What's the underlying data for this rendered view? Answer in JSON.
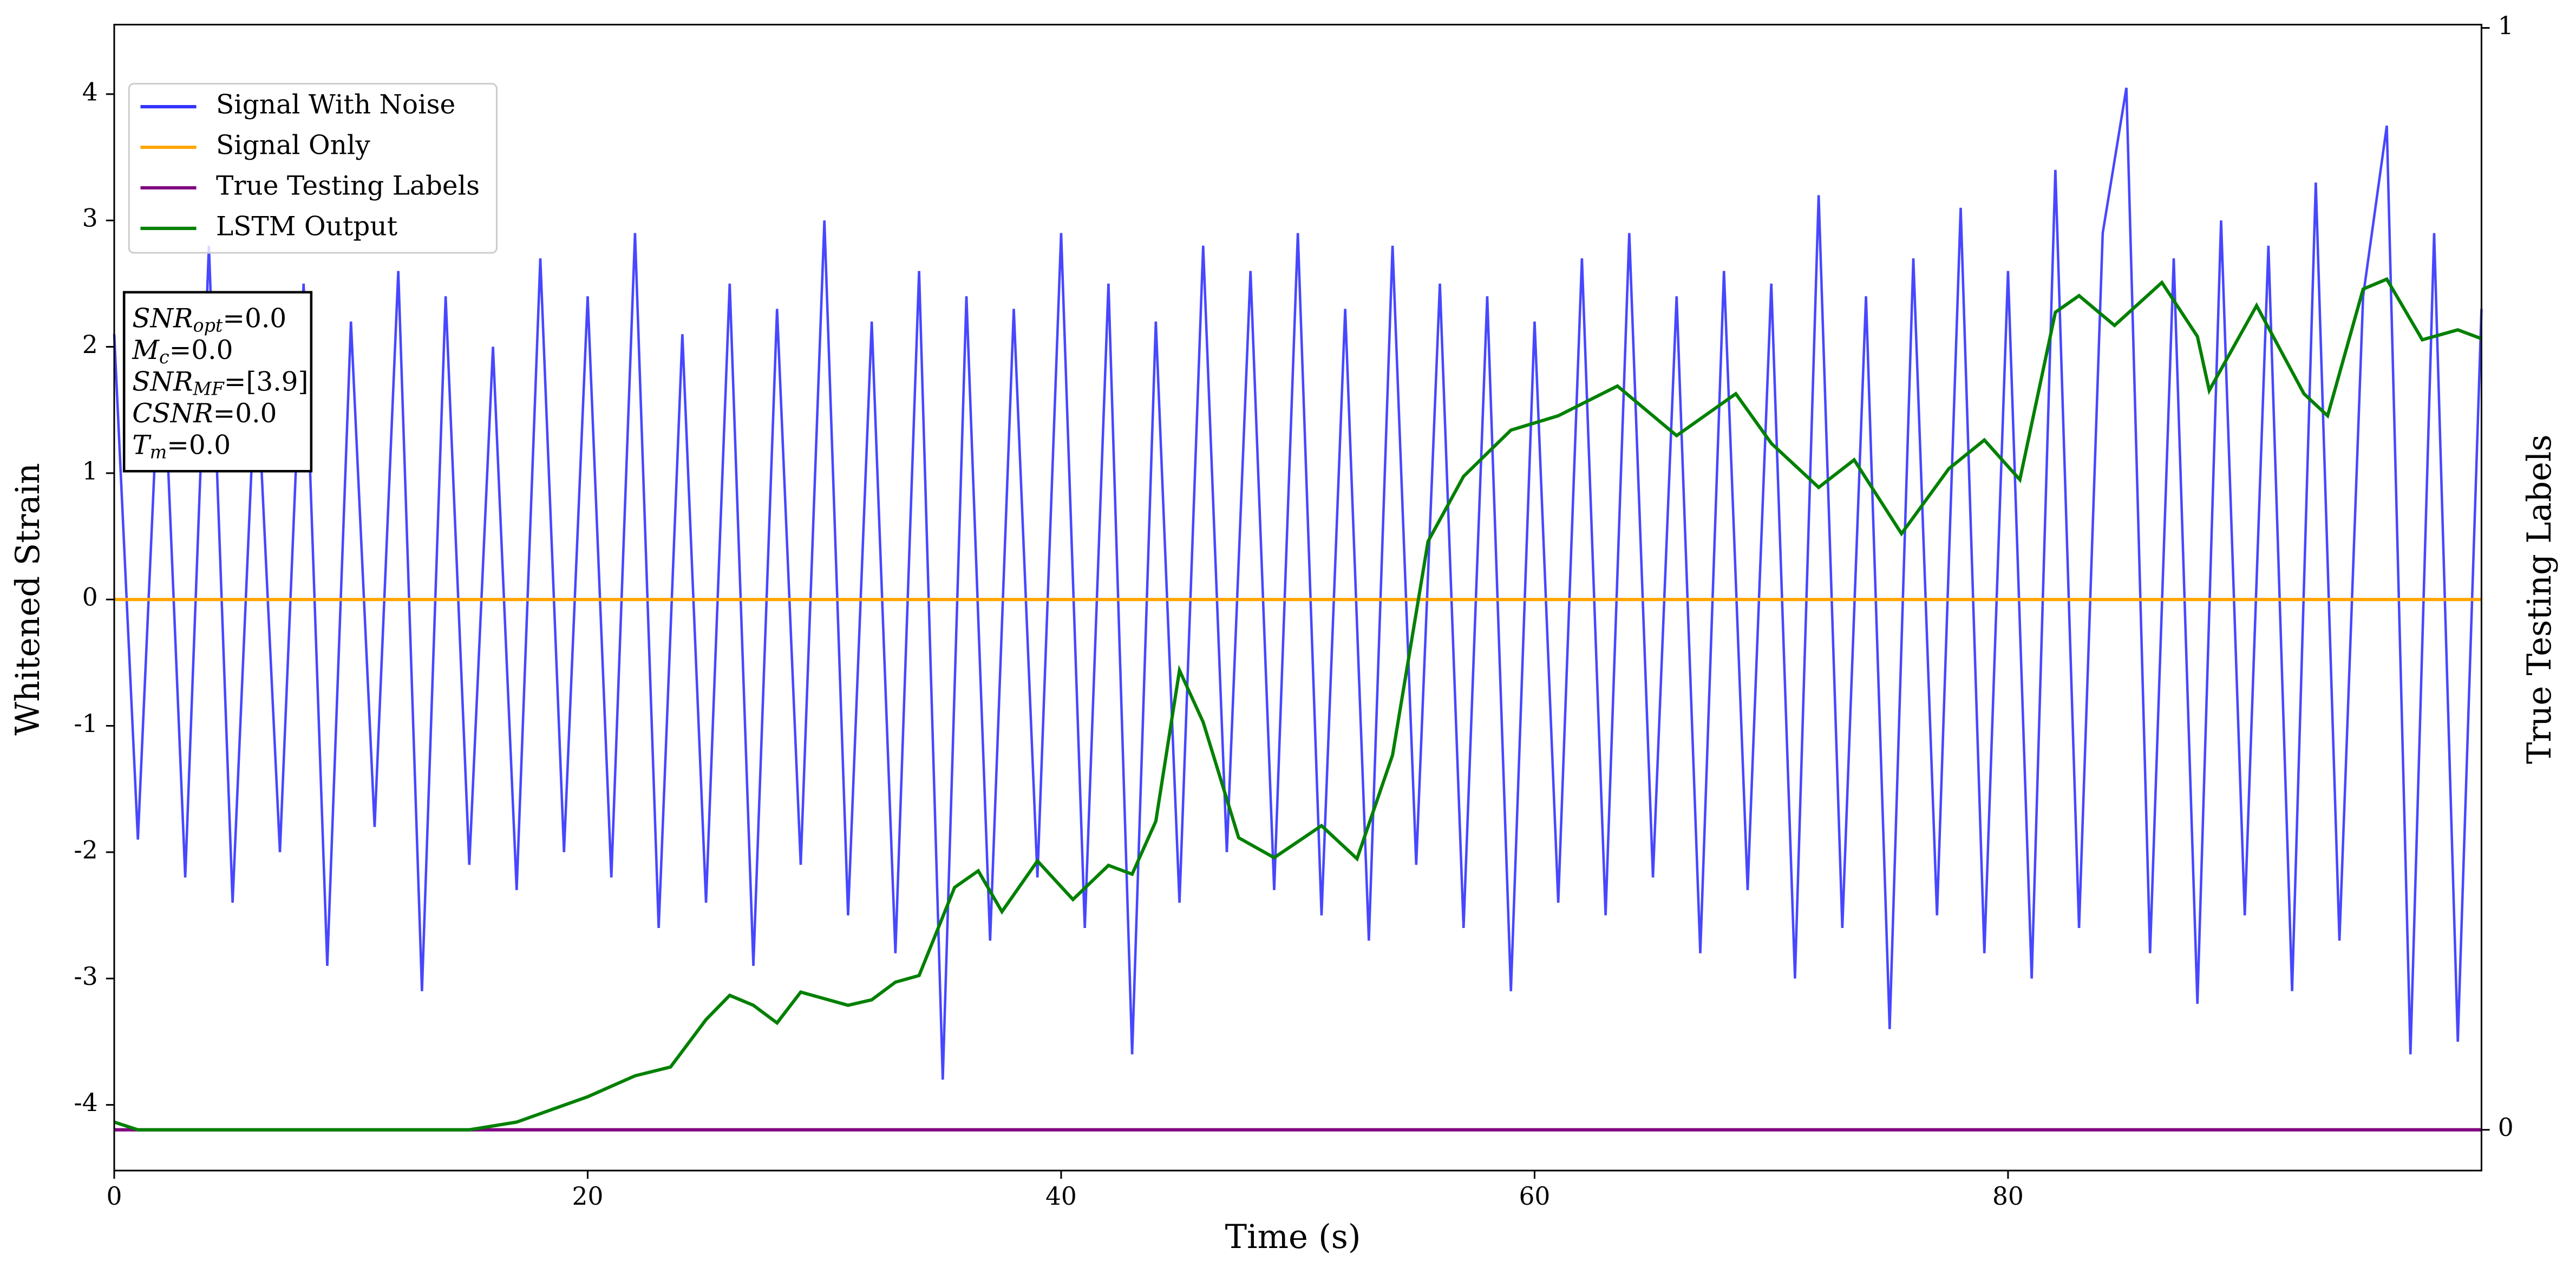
{
  "chart_data": {
    "type": "line",
    "xlabel": "Time (s)",
    "ylabel": "Whitened Strain",
    "y2label": "True Testing Labels",
    "xlim": [
      0,
      100
    ],
    "xticks": [
      0,
      20,
      40,
      60,
      80
    ],
    "ylim": [
      -4.52,
      4.55
    ],
    "yticks": [
      -4,
      -3,
      -2,
      -1,
      0,
      1,
      2,
      3,
      4
    ],
    "y2lim": [
      -0.037,
      1.003
    ],
    "y2ticks": [
      0,
      1
    ],
    "legend": "upper left",
    "annotation": [
      {
        "base": "SNR",
        "sub": "opt",
        "text": "=0.0"
      },
      {
        "base": "M",
        "sub": "c",
        "text": "=0.0"
      },
      {
        "base": "SNR",
        "sub": "MF",
        "text": "=[3.9]"
      },
      {
        "base": "CSNR",
        "text": "=0.0"
      },
      {
        "base": "T",
        "sub": "m",
        "text": "=0.0"
      }
    ],
    "series": [
      {
        "name": "Signal With Noise",
        "color": "#3333ff",
        "axis": "y",
        "x": [
          0,
          1,
          2,
          3,
          4,
          5,
          6,
          7,
          8,
          9,
          10,
          11,
          12,
          13,
          14,
          15,
          16,
          17,
          18,
          19,
          20,
          21,
          22,
          23,
          24,
          25,
          26,
          27,
          28,
          29,
          30,
          31,
          32,
          33,
          34,
          35,
          36,
          37,
          38,
          39,
          40,
          41,
          42,
          43,
          44,
          45,
          46,
          47,
          48,
          49,
          50,
          51,
          52,
          53,
          54,
          55,
          56,
          57,
          58,
          59,
          60,
          61,
          62,
          63,
          64,
          65,
          66,
          67,
          68,
          69,
          70,
          71,
          72,
          73,
          74,
          75,
          76,
          77,
          78,
          79,
          80,
          81,
          82,
          83,
          84,
          85,
          86,
          87,
          88,
          89,
          90,
          91,
          92,
          93,
          94,
          95,
          96,
          97,
          98,
          99,
          100
        ],
        "values": [
          2.1,
          -1.9,
          2.3,
          -2.2,
          2.8,
          -2.4,
          1.9,
          -2.0,
          2.5,
          -2.9,
          2.2,
          -1.8,
          2.6,
          -3.1,
          2.4,
          -2.1,
          2.0,
          -2.3,
          2.7,
          -2.0,
          2.4,
          -2.2,
          2.9,
          -2.6,
          2.1,
          -2.4,
          2.5,
          -2.9,
          2.3,
          -2.1,
          3.0,
          -2.5,
          2.2,
          -2.8,
          2.6,
          -3.8,
          2.4,
          -2.7,
          2.3,
          -2.2,
          2.9,
          -2.6,
          2.5,
          -3.6,
          2.2,
          -2.4,
          2.8,
          -2.0,
          2.6,
          -2.3,
          2.9,
          -2.5,
          2.3,
          -2.7,
          2.8,
          -2.1,
          2.5,
          -2.6,
          2.4,
          -3.1,
          2.2,
          -2.4,
          2.7,
          -2.5,
          2.9,
          -2.2,
          2.4,
          -2.8,
          2.6,
          -2.3,
          2.5,
          -3.0,
          3.2,
          -2.6,
          2.4,
          -3.4,
          2.7,
          -2.5,
          3.1,
          -2.8,
          2.6,
          -3.0,
          3.4,
          -2.6,
          2.9,
          4.05,
          -2.8,
          2.7,
          -3.2,
          3.0,
          -2.5,
          2.8,
          -3.1,
          3.3,
          -2.7,
          2.4,
          3.75,
          -3.6,
          2.9,
          -3.5,
          2.3
        ]
      },
      {
        "name": "Signal Only",
        "color": "#ffa500",
        "axis": "y",
        "x": [
          0,
          100
        ],
        "values": [
          0,
          0
        ]
      },
      {
        "name": "True Testing Labels",
        "color": "#800080",
        "axis": "y2",
        "x": [
          0,
          100
        ],
        "values": [
          0,
          0
        ]
      },
      {
        "name": "LSTM Output",
        "color": "#008000",
        "axis": "y2",
        "x": [
          0,
          1,
          15,
          17,
          20,
          22,
          23.5,
          25,
          26,
          27,
          28,
          29,
          31,
          32,
          33,
          34,
          35.5,
          36.5,
          37.5,
          39,
          40.5,
          42,
          43,
          44,
          45,
          46,
          47.5,
          49,
          51,
          52.5,
          54,
          55.5,
          57,
          59,
          61,
          63.5,
          66,
          68.5,
          70,
          72,
          73.5,
          75.5,
          77.5,
          79,
          80.5,
          82,
          83,
          84.5,
          86.5,
          88,
          88.5,
          90.5,
          92.5,
          93.5,
          95,
          96,
          97.5,
          99,
          100
        ],
        "values": [
          0.007,
          0,
          0,
          0.007,
          0.03,
          0.049,
          0.057,
          0.1,
          0.122,
          0.113,
          0.097,
          0.125,
          0.113,
          0.118,
          0.134,
          0.14,
          0.22,
          0.235,
          0.198,
          0.244,
          0.209,
          0.24,
          0.232,
          0.28,
          0.417,
          0.37,
          0.265,
          0.247,
          0.276,
          0.246,
          0.34,
          0.534,
          0.593,
          0.635,
          0.648,
          0.675,
          0.63,
          0.668,
          0.623,
          0.583,
          0.608,
          0.541,
          0.6,
          0.626,
          0.59,
          0.742,
          0.757,
          0.73,
          0.769,
          0.72,
          0.671,
          0.748,
          0.668,
          0.648,
          0.763,
          0.772,
          0.717,
          0.726,
          0.718
        ]
      }
    ]
  }
}
